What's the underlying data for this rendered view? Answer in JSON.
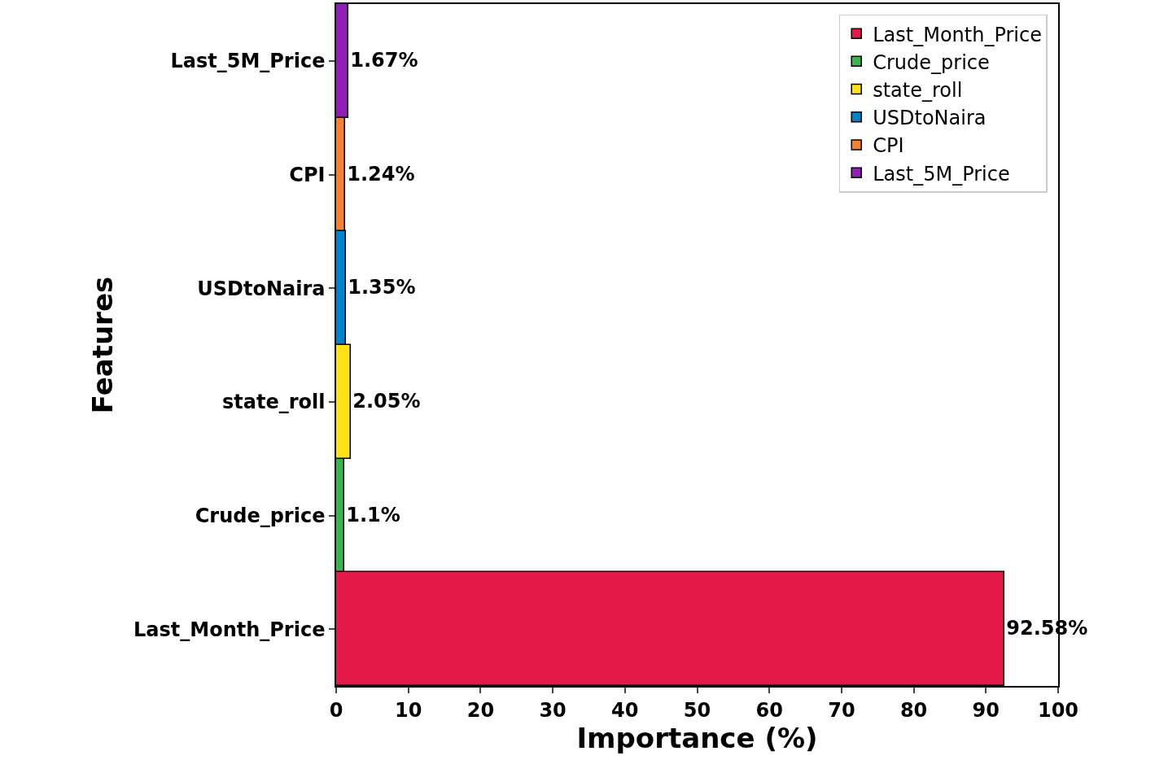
{
  "chart_data": {
    "type": "bar",
    "orientation": "horizontal",
    "xlabel": "Importance (%)",
    "ylabel": "Features",
    "categories": [
      "Last_5M_Price",
      "CPI",
      "USDtoNaira",
      "state_roll",
      "Crude_price",
      "Last_Month_Price"
    ],
    "series": [
      {
        "name": "Last_Month_Price",
        "color": "#e31a47",
        "values": [
          null,
          null,
          null,
          null,
          null,
          92.58
        ],
        "value_labels": [
          null,
          null,
          null,
          null,
          null,
          "92.58%"
        ]
      },
      {
        "name": "Crude_price",
        "color": "#3cb44b",
        "values": [
          null,
          null,
          null,
          null,
          1.1,
          null
        ],
        "value_labels": [
          null,
          null,
          null,
          null,
          "1.1%",
          null
        ]
      },
      {
        "name": "state_roll",
        "color": "#ffe119",
        "values": [
          null,
          null,
          null,
          2.05,
          null,
          null
        ],
        "value_labels": [
          null,
          null,
          null,
          "2.05%",
          null,
          null
        ]
      },
      {
        "name": "USDtoNaira",
        "color": "#0082c8",
        "values": [
          null,
          null,
          1.35,
          null,
          null,
          null
        ],
        "value_labels": [
          null,
          null,
          "1.35%",
          null,
          null,
          null
        ]
      },
      {
        "name": "CPI",
        "color": "#f58231",
        "values": [
          null,
          1.24,
          null,
          null,
          null,
          null
        ],
        "value_labels": [
          null,
          "1.24%",
          null,
          null,
          null,
          null
        ]
      },
      {
        "name": "Last_5M_Price",
        "color": "#911eb4",
        "values": [
          1.67,
          null,
          null,
          null,
          null,
          null
        ],
        "value_labels": [
          "1.67%",
          null,
          null,
          null,
          null,
          null
        ]
      }
    ],
    "xlim": [
      0,
      100
    ],
    "xticks": [
      0,
      10,
      20,
      30,
      40,
      50,
      60,
      70,
      80,
      90,
      100
    ],
    "grid": false,
    "legend": "top right"
  }
}
